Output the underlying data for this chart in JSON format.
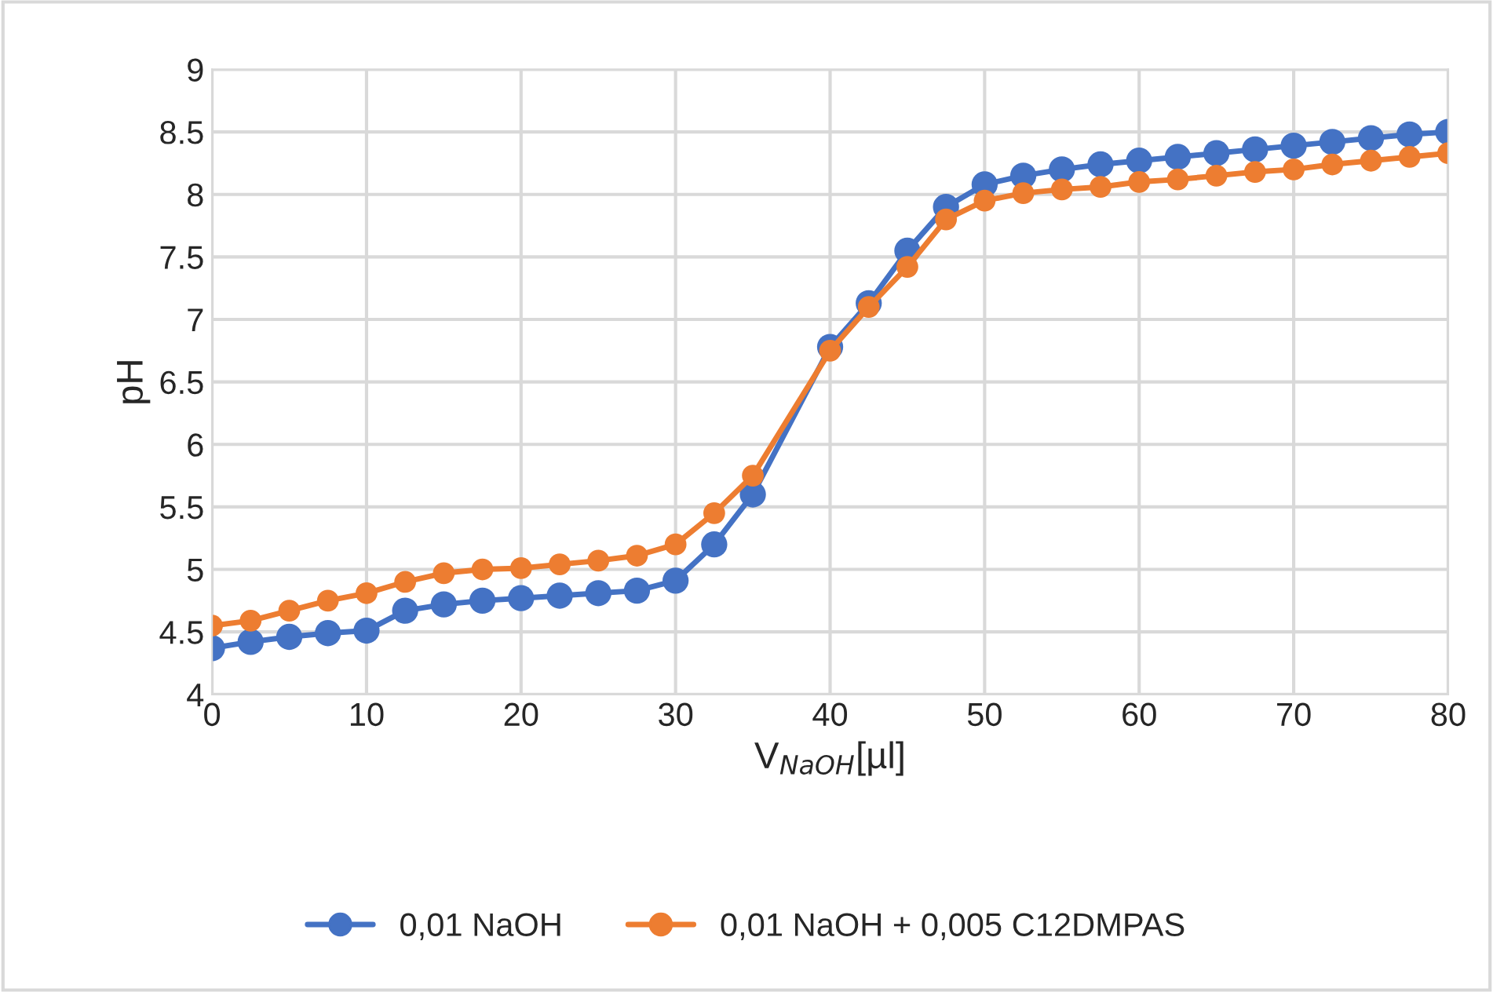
{
  "chart_data": {
    "type": "line",
    "xlabel": "V$_{NaOH}$[µl]",
    "ylabel": "pH",
    "x": [
      0,
      2.5,
      5,
      7.5,
      10,
      12.5,
      15,
      17.5,
      20,
      22.5,
      25,
      27.5,
      30,
      32.5,
      35,
      40,
      42.5,
      45,
      47.5,
      50,
      52.5,
      55,
      57.5,
      60,
      62.5,
      65,
      67.5,
      70,
      72.5,
      75,
      77.5,
      80
    ],
    "series": [
      {
        "name": "0,01 NaOH",
        "color": "#4472c4",
        "values": [
          4.37,
          4.42,
          4.46,
          4.49,
          4.51,
          4.67,
          4.72,
          4.75,
          4.77,
          4.79,
          4.81,
          4.83,
          4.91,
          5.2,
          5.6,
          6.78,
          7.13,
          7.55,
          7.9,
          8.08,
          8.15,
          8.2,
          8.24,
          8.27,
          8.3,
          8.33,
          8.36,
          8.39,
          8.42,
          8.45,
          8.48,
          8.5
        ]
      },
      {
        "name": "0,01 NaOH + 0,005 C12DMPAS",
        "color": "#ed7d31",
        "values": [
          4.55,
          4.59,
          4.67,
          4.75,
          4.81,
          4.9,
          4.97,
          5.0,
          5.01,
          5.04,
          5.07,
          5.11,
          5.2,
          5.45,
          5.75,
          6.75,
          7.1,
          7.42,
          7.8,
          7.95,
          8.01,
          8.04,
          8.06,
          8.1,
          8.12,
          8.15,
          8.18,
          8.2,
          8.24,
          8.27,
          8.3,
          8.33
        ]
      }
    ],
    "xlim": [
      0,
      80
    ],
    "xticks": [
      0,
      10,
      20,
      30,
      40,
      50,
      60,
      70,
      80
    ],
    "ylim": [
      4,
      9
    ],
    "yticks": [
      4,
      4.5,
      5,
      5.5,
      6,
      6.5,
      7,
      7.5,
      8,
      8.5,
      9
    ],
    "grid": true,
    "legend": "bottom",
    "marker": "circle",
    "line_style": "solid"
  }
}
